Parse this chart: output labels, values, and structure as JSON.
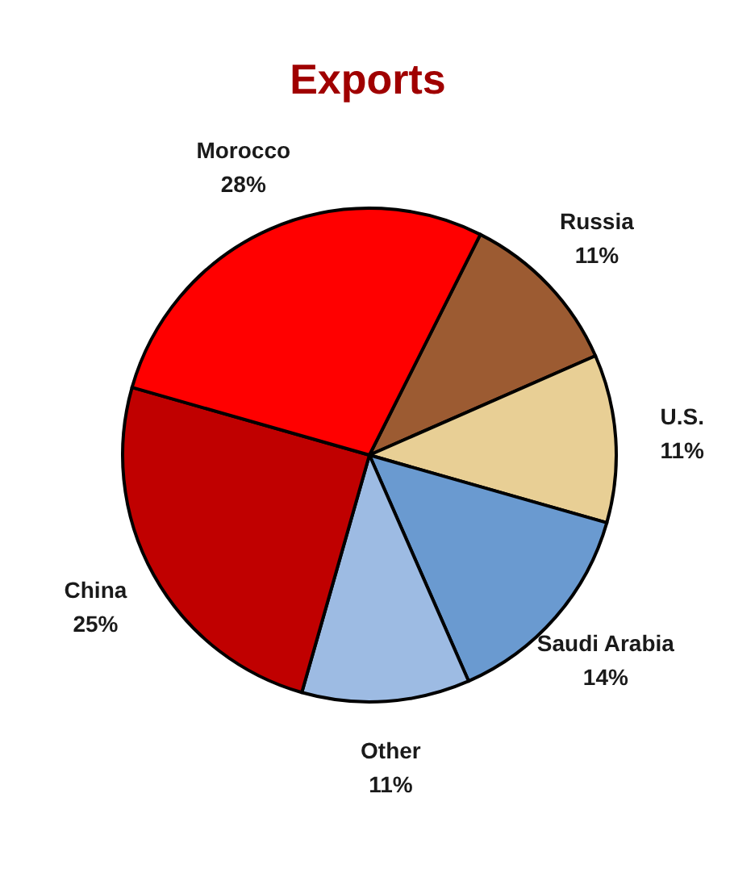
{
  "chart_data": {
    "type": "pie",
    "title": "Exports",
    "categories": [
      "Russia",
      "U.S.",
      "Saudi Arabia",
      "Other",
      "China",
      "Morocco"
    ],
    "values": [
      11,
      11,
      14,
      11,
      25,
      28
    ],
    "value_labels": [
      "11%",
      "11%",
      "14%",
      "11%",
      "25%",
      "28%"
    ],
    "colors": [
      "#9c5b32",
      "#e8cf95",
      "#6a9ad0",
      "#9dbbe3",
      "#c00000",
      "#ff0000"
    ]
  }
}
